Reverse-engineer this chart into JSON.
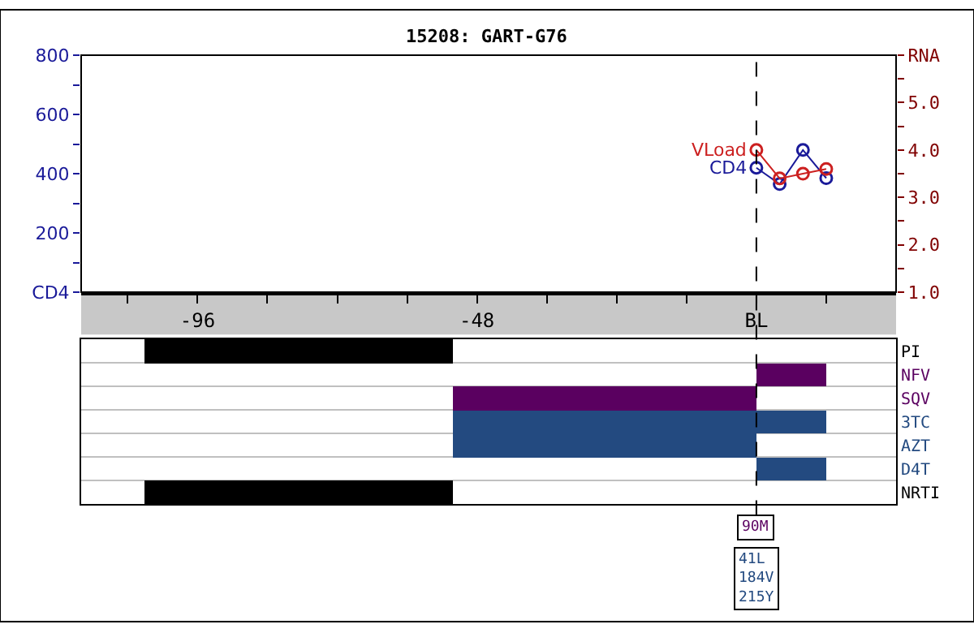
{
  "chart_data": [
    {
      "type": "line",
      "title": "15208: GART-G76",
      "x": [
        0,
        4,
        8,
        12
      ],
      "series": [
        {
          "name": "VLoad",
          "color": "#cc2020",
          "values": [
            4.0,
            3.4,
            3.5,
            3.6
          ],
          "axis": "y2"
        },
        {
          "name": "CD4",
          "color": "#1a1a99",
          "values": [
            420,
            365,
            480,
            385
          ],
          "axis": "y"
        }
      ],
      "xlim": [
        -116,
        24
      ],
      "xticks": [
        {
          "value": -108,
          "label": null
        },
        -96,
        {
          "value": -84,
          "label": null
        },
        {
          "value": -72,
          "label": null
        },
        {
          "value": -60,
          "label": null
        },
        -48,
        {
          "value": -36,
          "label": null
        },
        {
          "value": -24,
          "label": null
        },
        {
          "value": -12,
          "label": null
        },
        {
          "value": 0,
          "label": "BL"
        },
        {
          "value": 12,
          "label": null
        }
      ],
      "ylim": [
        0,
        800
      ],
      "yticks": [
        {
          "value": 0,
          "label": "CD4"
        },
        {
          "value": 100,
          "label": null
        },
        200,
        {
          "value": 300,
          "label": null
        },
        400,
        {
          "value": 500,
          "label": null
        },
        600,
        {
          "value": 700,
          "label": null
        },
        800
      ],
      "y2lim": [
        1,
        6
      ],
      "y2ticks": [
        {
          "value": 1,
          "label": "1.0"
        },
        {
          "value": 1.5,
          "label": null
        },
        {
          "value": 2,
          "label": "2.0"
        },
        {
          "value": 2.5,
          "label": null
        },
        {
          "value": 3,
          "label": "3.0"
        },
        {
          "value": 3.5,
          "label": null
        },
        {
          "value": 4,
          "label": "4.0"
        },
        {
          "value": 4.5,
          "label": null
        },
        {
          "value": 5,
          "label": "5.0"
        },
        {
          "value": 5.5,
          "label": null
        },
        {
          "value": 6,
          "label": "RNA"
        }
      ],
      "marker": "circle",
      "line_style": "solid",
      "grid": false,
      "ref_lines": [
        {
          "axis": "x",
          "value": 0,
          "line_style": "dashed",
          "color": "#000000"
        }
      ],
      "annotations": [
        "90M",
        "41L\n184V\n215Y"
      ]
    },
    {
      "type": "bar",
      "orientation": "horizontal",
      "categories": [
        "PI",
        "NFV",
        "SQV",
        "3TC",
        "AZT",
        "D4T",
        "NRTI"
      ],
      "base": [
        -105,
        0,
        -52,
        -52,
        -52,
        0,
        -105
      ],
      "values": [
        53,
        12,
        52,
        64,
        52,
        12,
        53
      ],
      "colors": [
        "#000000",
        "#5a0060",
        "#5a0060",
        "#234a80",
        "#234a80",
        "#234a80",
        "#000000"
      ],
      "xlim": [
        -116,
        24
      ],
      "tick_labels": "y",
      "grid": "y"
    }
  ]
}
